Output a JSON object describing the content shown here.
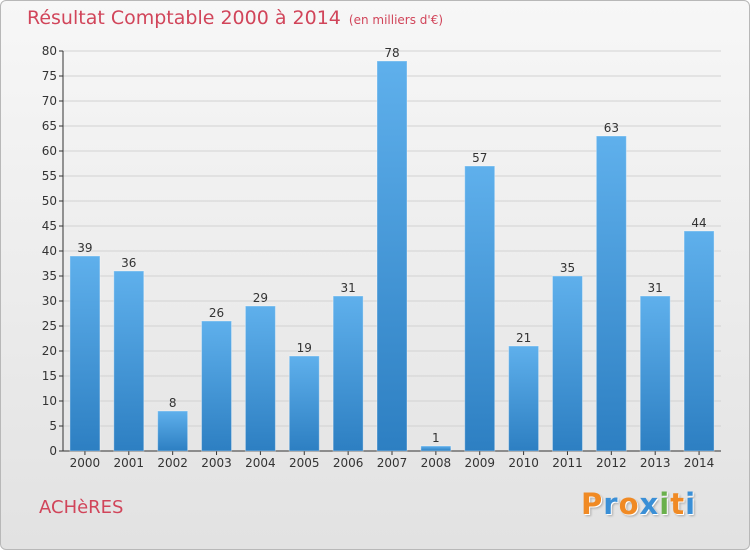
{
  "title": {
    "main": "Résultat Comptable 2000 à 2014",
    "unit": "(en milliers d'€)"
  },
  "commune": "ACHèRES",
  "brand": {
    "text": "Proxiti",
    "letters": [
      "P",
      "r",
      "o",
      "x",
      "i",
      "t",
      "i"
    ],
    "colors": [
      "#f08a24",
      "#3a8fd6",
      "#f08a24",
      "#3a8fd6",
      "#6ab04c",
      "#f08a24",
      "#3a8fd6"
    ]
  },
  "colors": {
    "title": "#d1455a",
    "bar_light": "#5fb0ec",
    "bar_dark": "#2d7fc2",
    "grid": "#d2d2d2",
    "axis": "#333333"
  },
  "chart_data": {
    "type": "bar",
    "title": "Résultat Comptable 2000 à 2014",
    "xlabel": "",
    "ylabel": "",
    "categories": [
      "2000",
      "2001",
      "2002",
      "2003",
      "2004",
      "2005",
      "2006",
      "2007",
      "2008",
      "2009",
      "2010",
      "2011",
      "2012",
      "2013",
      "2014"
    ],
    "values": [
      39,
      36,
      8,
      26,
      29,
      19,
      31,
      78,
      1,
      57,
      21,
      35,
      63,
      31,
      44
    ],
    "ylim": [
      0,
      80
    ],
    "yticks": [
      0,
      5,
      10,
      15,
      20,
      25,
      30,
      35,
      40,
      45,
      50,
      55,
      60,
      65,
      70,
      75,
      80
    ],
    "grid": true,
    "legend": "none"
  }
}
